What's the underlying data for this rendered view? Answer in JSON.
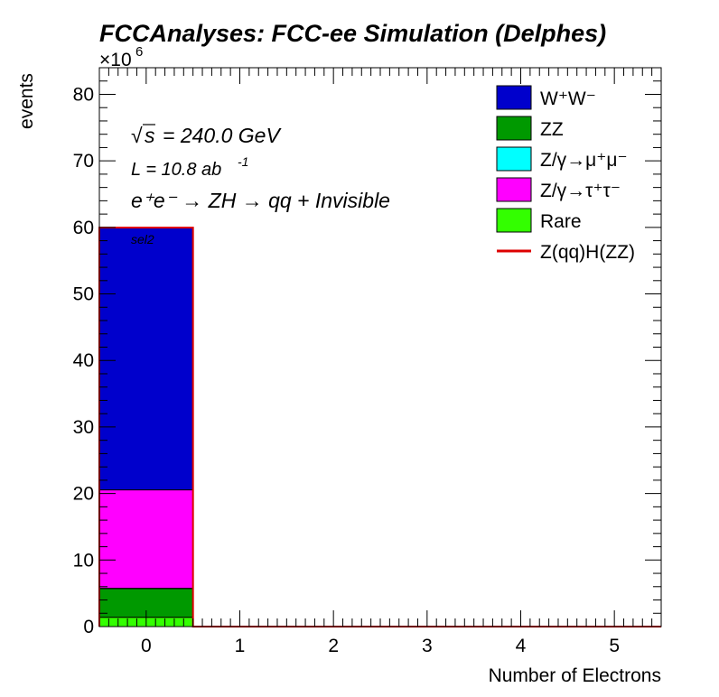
{
  "chart_data": {
    "type": "bar",
    "stacked": true,
    "title": "FCCAnalyses: FCC-ee Simulation (Delphes)",
    "xlabel": "Number of Electrons",
    "ylabel": "events",
    "y_multiplier": "×10",
    "y_multiplier_exp": "6",
    "xlim": [
      -0.5,
      5.5
    ],
    "ylim": [
      0,
      84
    ],
    "x_ticks": [
      "0",
      "1",
      "2",
      "3",
      "4",
      "5"
    ],
    "y_ticks": [
      "0",
      "10",
      "20",
      "30",
      "40",
      "50",
      "60",
      "70",
      "80"
    ],
    "categories": [
      0,
      1,
      2,
      3,
      4,
      5
    ],
    "series": [
      {
        "name": "Rare",
        "color": "#33ff00",
        "values": [
          1.4,
          0,
          0,
          0,
          0,
          0
        ]
      },
      {
        "name": "ZZ",
        "color": "#009900",
        "values": [
          4.3,
          0,
          0,
          0,
          0,
          0
        ]
      },
      {
        "name": "Z/γ→μ⁺μ⁻",
        "color": "#00ffff",
        "values": [
          0.05,
          0,
          0,
          0,
          0,
          0
        ]
      },
      {
        "name": "Z/γ→τ⁺τ⁻",
        "color": "#ff00ff",
        "values": [
          14.8,
          0,
          0,
          0,
          0,
          0
        ]
      },
      {
        "name": "W⁺W⁻",
        "color": "#0000cc",
        "values": [
          39.4,
          0,
          0,
          0,
          0,
          0
        ]
      }
    ],
    "signal": {
      "name": "Z(qq)H(ZZ)",
      "color": "#dd0000",
      "values": [
        0.02,
        0,
        0,
        0,
        0,
        0
      ]
    },
    "legend_placement": "top-right",
    "annotations": {
      "sqrt_s": "= 240.0 GeV",
      "lumi": "L = 10.8 ab",
      "lumi_exp": "-1",
      "process": "e⁺e⁻ → ZH → qq + Invisible",
      "selection": "sel2"
    },
    "legend": [
      {
        "label": "W⁺W⁻",
        "color": "#0000cc",
        "kind": "box"
      },
      {
        "label": "ZZ",
        "color": "#009900",
        "kind": "box"
      },
      {
        "label": "Z/γ→μ⁺μ⁻",
        "color": "#00ffff",
        "kind": "box"
      },
      {
        "label": "Z/γ→τ⁺τ⁻",
        "color": "#ff00ff",
        "kind": "box"
      },
      {
        "label": "Rare",
        "color": "#33ff00",
        "kind": "box"
      },
      {
        "label": "Z(qq)H(ZZ)",
        "color": "#dd0000",
        "kind": "line"
      }
    ]
  }
}
